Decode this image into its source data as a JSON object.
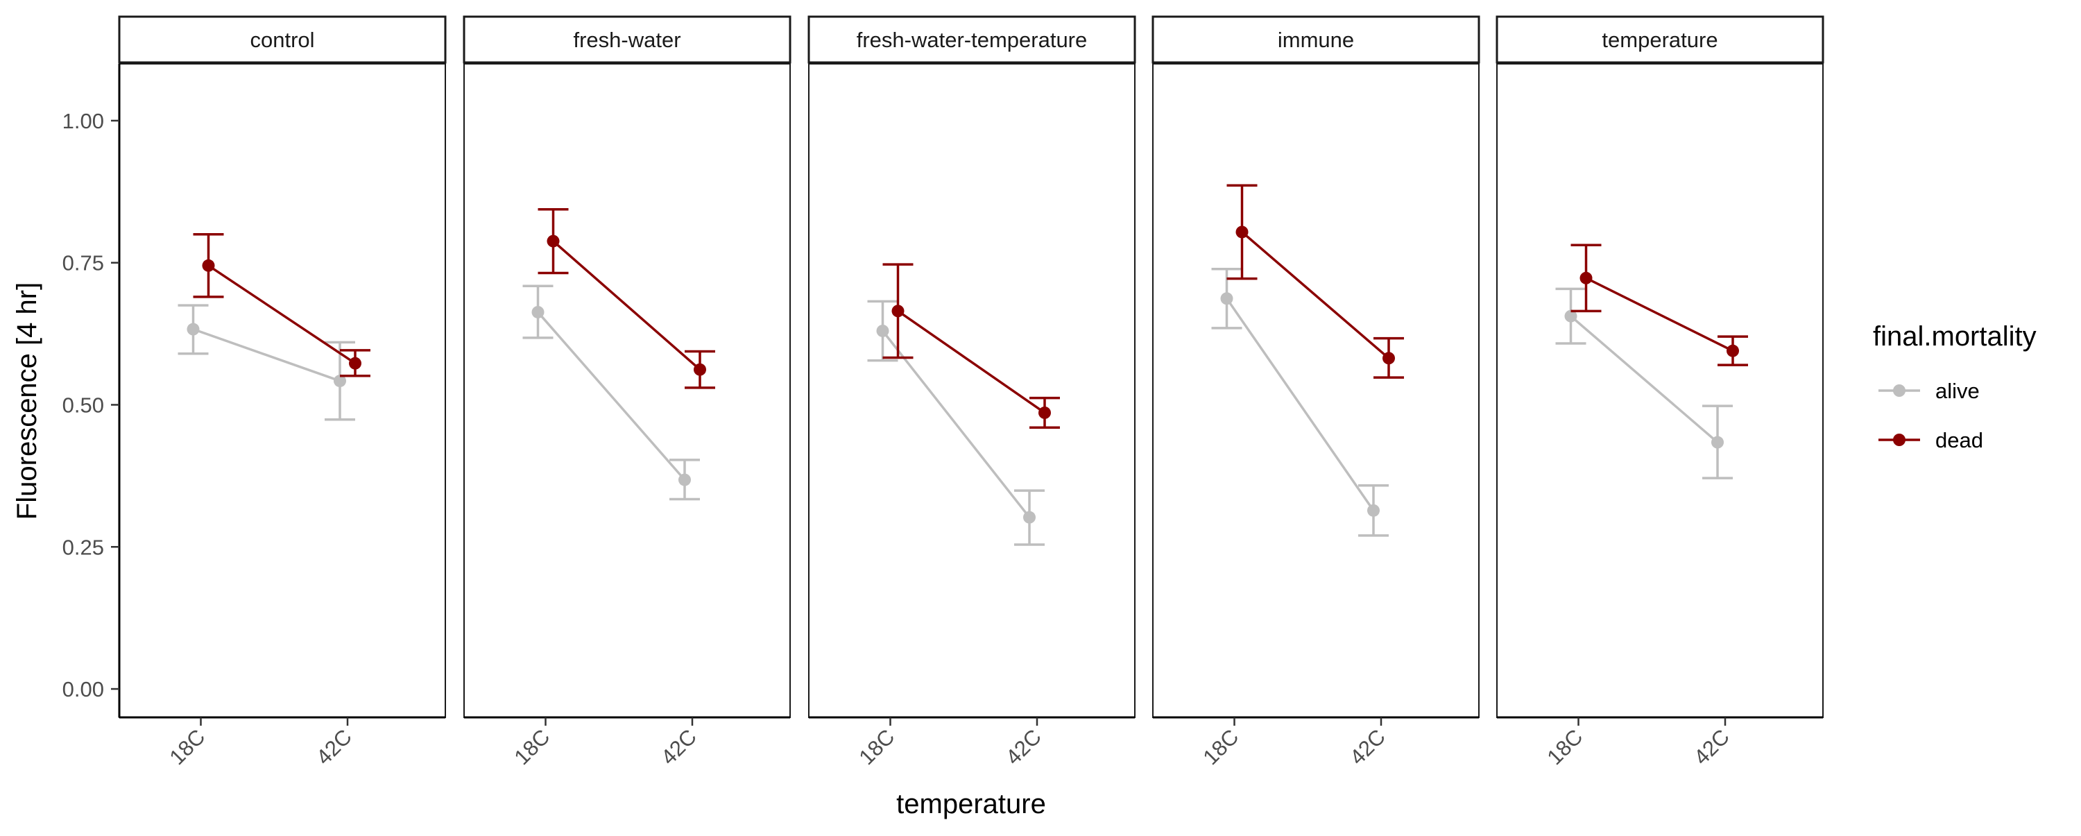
{
  "chart_data": {
    "type": "line",
    "xlabel": "temperature",
    "ylabel": "Fluorescence [4 hr]",
    "ylim": [
      -0.05,
      1.1
    ],
    "y_ticks": [
      "0.00",
      "0.25",
      "0.50",
      "0.75",
      "1.00"
    ],
    "y_tick_values": [
      0,
      0.25,
      0.5,
      0.75,
      1.0
    ],
    "categories": [
      "18C",
      "42C"
    ],
    "grid": false,
    "legend": {
      "title": "final.mortality",
      "position": "right",
      "entries": [
        "alive",
        "dead"
      ]
    },
    "series_colors": {
      "alive": "#bebebe",
      "dead": "#8b0000"
    },
    "panels": [
      {
        "label": "control",
        "series": [
          {
            "name": "alive",
            "values": [
              0.633,
              0.542
            ],
            "lower": [
              0.59,
              0.474
            ],
            "upper": [
              0.675,
              0.61
            ]
          },
          {
            "name": "dead",
            "values": [
              0.745,
              0.573
            ],
            "lower": [
              0.69,
              0.551
            ],
            "upper": [
              0.8,
              0.596
            ]
          }
        ]
      },
      {
        "label": "fresh-water",
        "series": [
          {
            "name": "alive",
            "values": [
              0.663,
              0.368
            ],
            "lower": [
              0.618,
              0.334
            ],
            "upper": [
              0.709,
              0.403
            ]
          },
          {
            "name": "dead",
            "values": [
              0.788,
              0.562
            ],
            "lower": [
              0.732,
              0.53
            ],
            "upper": [
              0.844,
              0.594
            ]
          }
        ]
      },
      {
        "label": "fresh-water-temperature",
        "series": [
          {
            "name": "alive",
            "values": [
              0.63,
              0.302
            ],
            "lower": [
              0.578,
              0.254
            ],
            "upper": [
              0.682,
              0.349
            ]
          },
          {
            "name": "dead",
            "values": [
              0.665,
              0.486
            ],
            "lower": [
              0.583,
              0.46
            ],
            "upper": [
              0.747,
              0.512
            ]
          }
        ]
      },
      {
        "label": "immune",
        "series": [
          {
            "name": "alive",
            "values": [
              0.687,
              0.314
            ],
            "lower": [
              0.635,
              0.27
            ],
            "upper": [
              0.739,
              0.358
            ]
          },
          {
            "name": "dead",
            "values": [
              0.804,
              0.582
            ],
            "lower": [
              0.722,
              0.548
            ],
            "upper": [
              0.886,
              0.617
            ]
          }
        ]
      },
      {
        "label": "temperature",
        "series": [
          {
            "name": "alive",
            "values": [
              0.656,
              0.434
            ],
            "lower": [
              0.608,
              0.371
            ],
            "upper": [
              0.704,
              0.498
            ]
          },
          {
            "name": "dead",
            "values": [
              0.723,
              0.595
            ],
            "lower": [
              0.665,
              0.57
            ],
            "upper": [
              0.781,
              0.62
            ]
          }
        ]
      }
    ]
  }
}
